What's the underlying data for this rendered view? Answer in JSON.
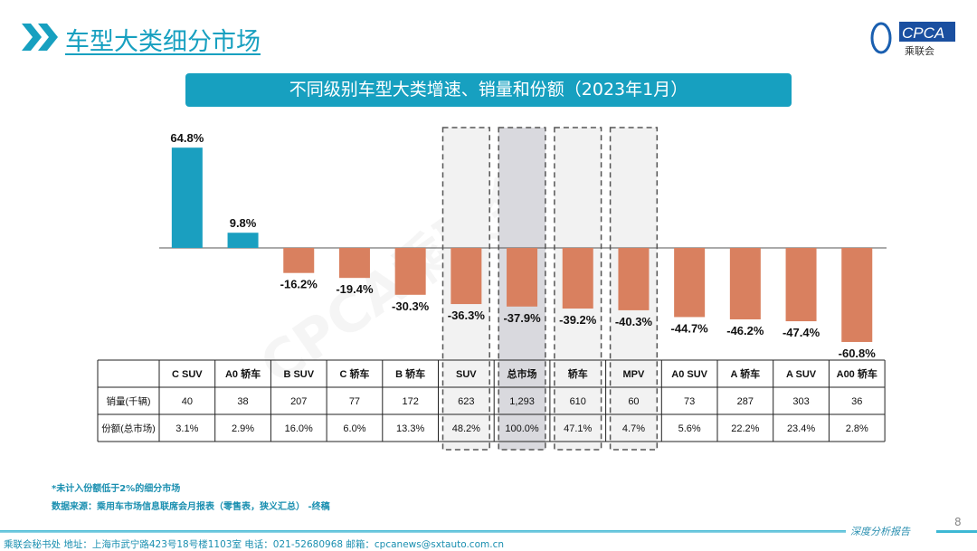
{
  "header": {
    "title": "车型大类细分市场",
    "logo_text": "CPCA",
    "logo_sub": "乘联会"
  },
  "banner": {
    "title": "不同级别车型大类增速、销量和份额（2023年1月）"
  },
  "watermark": "CPCA乘联会",
  "chart_data": {
    "type": "bar",
    "title": "不同级别车型大类增速、销量和份额（2023年1月）",
    "categories": [
      "C SUV",
      "A0 轿车",
      "B SUV",
      "C 轿车",
      "B 轿车",
      "SUV",
      "总市场",
      "轿车",
      "MPV",
      "A0 SUV",
      "A 轿车",
      "A SUV",
      "A00 轿车"
    ],
    "values": [
      64.8,
      9.8,
      -16.2,
      -19.4,
      -30.3,
      -36.3,
      -37.9,
      -39.2,
      -40.3,
      -44.7,
      -46.2,
      -47.4,
      -60.8
    ],
    "data_labels": [
      "64.8%",
      "9.8%",
      "-16.2%",
      "-19.4%",
      "-30.3%",
      "-36.3%",
      "-37.9%",
      "-39.2%",
      "-40.3%",
      "-44.7%",
      "-46.2%",
      "-47.4%",
      "-60.8%"
    ],
    "highlighted": [
      "SUV",
      "总市场",
      "轿车",
      "MPV"
    ],
    "colors": {
      "positive": "#1A9FC0",
      "negative": "#D9805F"
    },
    "table": {
      "rows": [
        {
          "label": "销量(千辆)",
          "values": [
            "40",
            "38",
            "207",
            "77",
            "172",
            "623",
            "1,293",
            "610",
            "60",
            "73",
            "287",
            "303",
            "36"
          ]
        },
        {
          "label": "份额(总市场)",
          "values": [
            "3.1%",
            "2.9%",
            "16.0%",
            "6.0%",
            "13.3%",
            "48.2%",
            "100.0%",
            "47.1%",
            "4.7%",
            "5.6%",
            "22.2%",
            "23.4%",
            "2.8%"
          ]
        }
      ]
    }
  },
  "notes": [
    "*未计入份额低于2%的细分市场",
    "数据来源：乘用车市场信息联席会月报表（零售表，狭义汇总） -终稿"
  ],
  "footer": {
    "text": "乘联会秘书处   地址：上海市武宁路423号18号楼1103室  电话：021-52680968   邮箱：cpcanews@sxtauto.com.cn",
    "report": "深度分析报告",
    "page": "8"
  }
}
